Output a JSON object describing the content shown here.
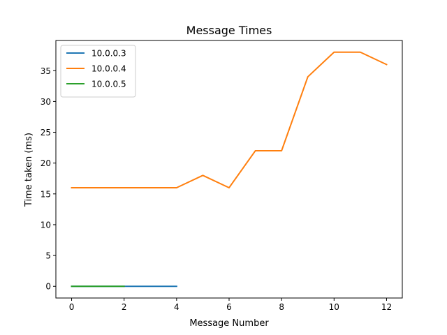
{
  "chart_data": {
    "type": "line",
    "title": "Message Times",
    "xlabel": "Message Number",
    "ylabel": "Time taken (ms)",
    "xlim": [
      -0.6,
      12.6
    ],
    "ylim": [
      -1.9,
      39.9
    ],
    "x_ticks": [
      0,
      2,
      4,
      6,
      8,
      10,
      12
    ],
    "y_ticks": [
      0,
      5,
      10,
      15,
      20,
      25,
      30,
      35
    ],
    "grid": false,
    "legend_position": "upper-left",
    "series": [
      {
        "name": "10.0.0.3",
        "color": "#1f77b4",
        "x": [
          0,
          1,
          2,
          3,
          4
        ],
        "values": [
          0,
          0,
          0,
          0,
          0
        ]
      },
      {
        "name": "10.0.0.4",
        "color": "#ff7f0e",
        "x": [
          0,
          1,
          2,
          3,
          4,
          5,
          6,
          7,
          8,
          9,
          10,
          11,
          12
        ],
        "values": [
          16,
          16,
          16,
          16,
          16,
          18,
          16,
          22,
          22,
          34,
          38,
          38,
          36
        ]
      },
      {
        "name": "10.0.0.5",
        "color": "#2ca02c",
        "x": [
          0,
          1,
          2
        ],
        "values": [
          0,
          0,
          0
        ]
      }
    ]
  }
}
